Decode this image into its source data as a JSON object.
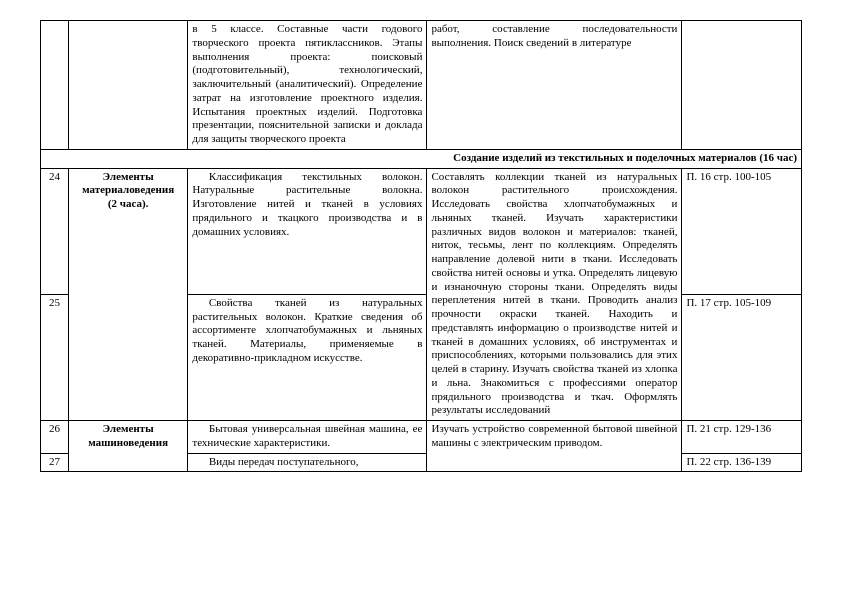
{
  "rows": {
    "r0": {
      "desc": "в 5 классе. Составные части годового творческого проекта пятиклассников. Этапы выполнения проекта: поисковый (подготовительный), технологический, заключительный (аналитический). Определение затрат на изготовление проектного изделия. Испытания проектных изделий. Подготовка презентации, пояснительной записки и доклада для защиты творческого проекта",
      "act": "работ, составление последовательности выполнения. Поиск сведений в литературе"
    },
    "section": "Создание изделий из текстильных и поделочных материалов (16 час)",
    "r24": {
      "num": "24",
      "topic_l1": "Элементы",
      "topic_l2": "материаловедения",
      "topic_l3": "(2 часа).",
      "desc": "Классификация текстильных волокон. Натуральные растительные волокна. Изготовление нитей и тканей в условиях прядильного и ткацкого производства и в домашних условиях.",
      "act": "Составлять коллекции тканей из натуральных волокон растительного происхождения. Исследовать свойства хлопчатобумажных и льняных тканей. Изучать характеристики различных видов волокон и материалов: тканей, ниток, тесьмы, лент по коллекциям. Определять направление долевой нити в ткани. Исследовать свойства нитей основы и утка. Определять лицевую и изнаночную стороны ткани. Определять виды переплетения нитей в ткани. Проводить анализ прочности окраски тканей. Находить и представлять информацию о производстве нитей и тканей в домашних условиях, об инструментах и приспособлениях, которыми пользовались для этих целей в старину. Изучать свойства тканей из хлопка и льна. Знакомиться с профессиями оператор прядильного производства и ткач. Оформлять результаты исследований",
      "ref": "П. 16  стр. 100-105"
    },
    "r25": {
      "num": "25",
      "desc": "Свойства тканей из натуральных растительных волокон. Краткие сведения об ассортименте хлопчатобумажных и льняных тканей. Материалы, применяемые в декоративно-прикладном искусстве.",
      "ref": "П. 17 стр. 105-109"
    },
    "r26": {
      "num": "26",
      "topic_l1": "Элементы",
      "topic_l2": "машиноведения",
      "desc": "Бытовая универсальная швейная машина, ее технические характеристики.",
      "act": "Изучать устройство современной бытовой швейной машины с электрическим приводом.",
      "ref": "П. 21 стр. 129-136"
    },
    "r27": {
      "num": "27",
      "desc": "Виды передач поступательного,",
      "ref": "П. 22 стр. 136-139"
    }
  }
}
